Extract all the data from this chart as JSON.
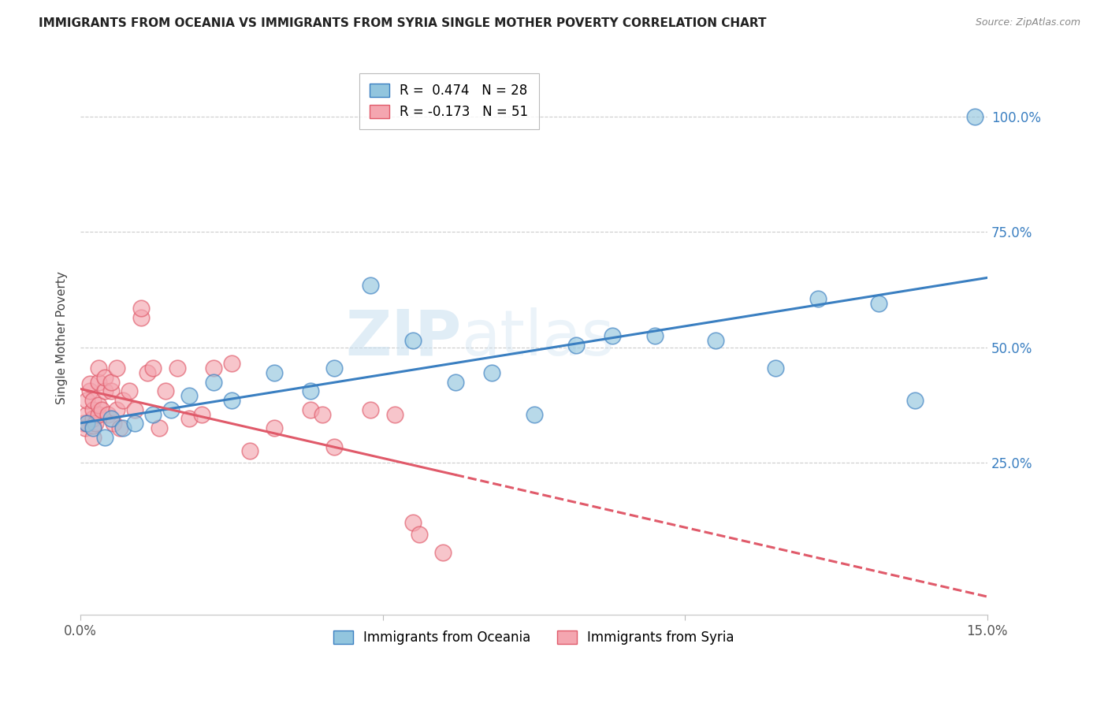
{
  "title": "IMMIGRANTS FROM OCEANIA VS IMMIGRANTS FROM SYRIA SINGLE MOTHER POVERTY CORRELATION CHART",
  "source": "Source: ZipAtlas.com",
  "ylabel": "Single Mother Poverty",
  "xlim": [
    0.0,
    0.15
  ],
  "ylim": [
    -0.08,
    1.12
  ],
  "y_ticks": [
    0.25,
    0.5,
    0.75,
    1.0
  ],
  "y_tick_labels": [
    "25.0%",
    "50.0%",
    "75.0%",
    "100.0%"
  ],
  "x_ticks": [
    0.0,
    0.05,
    0.1,
    0.15
  ],
  "x_tick_labels": [
    "0.0%",
    "",
    "",
    "15.0%"
  ],
  "r_oceania": 0.474,
  "n_oceania": 28,
  "r_syria": -0.173,
  "n_syria": 51,
  "color_oceania": "#92c5de",
  "color_syria": "#f4a6b0",
  "line_color_oceania": "#3a7fc1",
  "line_color_syria": "#e05a6a",
  "watermark": "ZIPatlas",
  "oceania_x": [
    0.001,
    0.002,
    0.004,
    0.005,
    0.007,
    0.009,
    0.012,
    0.015,
    0.018,
    0.022,
    0.025,
    0.032,
    0.038,
    0.042,
    0.048,
    0.055,
    0.062,
    0.068,
    0.075,
    0.082,
    0.088,
    0.095,
    0.105,
    0.115,
    0.122,
    0.132,
    0.138,
    0.148
  ],
  "oceania_y": [
    0.335,
    0.325,
    0.305,
    0.345,
    0.325,
    0.335,
    0.355,
    0.365,
    0.395,
    0.425,
    0.385,
    0.445,
    0.405,
    0.455,
    0.635,
    0.515,
    0.425,
    0.445,
    0.355,
    0.505,
    0.525,
    0.525,
    0.515,
    0.455,
    0.605,
    0.595,
    0.385,
    1.0
  ],
  "syria_x": [
    0.0005,
    0.0007,
    0.001,
    0.001,
    0.001,
    0.0015,
    0.0015,
    0.002,
    0.002,
    0.002,
    0.002,
    0.002,
    0.0025,
    0.003,
    0.003,
    0.003,
    0.003,
    0.0035,
    0.004,
    0.004,
    0.0045,
    0.005,
    0.005,
    0.0055,
    0.006,
    0.006,
    0.0065,
    0.007,
    0.008,
    0.009,
    0.01,
    0.01,
    0.011,
    0.012,
    0.013,
    0.014,
    0.016,
    0.018,
    0.02,
    0.022,
    0.025,
    0.028,
    0.032,
    0.038,
    0.04,
    0.042,
    0.048,
    0.052,
    0.055,
    0.056,
    0.06
  ],
  "syria_y": [
    0.335,
    0.325,
    0.335,
    0.355,
    0.385,
    0.405,
    0.42,
    0.305,
    0.33,
    0.345,
    0.365,
    0.385,
    0.335,
    0.355,
    0.375,
    0.425,
    0.455,
    0.365,
    0.405,
    0.435,
    0.355,
    0.405,
    0.425,
    0.335,
    0.365,
    0.455,
    0.325,
    0.385,
    0.405,
    0.365,
    0.565,
    0.585,
    0.445,
    0.455,
    0.325,
    0.405,
    0.455,
    0.345,
    0.355,
    0.455,
    0.465,
    0.275,
    0.325,
    0.365,
    0.355,
    0.285,
    0.365,
    0.355,
    0.12,
    0.095,
    0.055
  ]
}
